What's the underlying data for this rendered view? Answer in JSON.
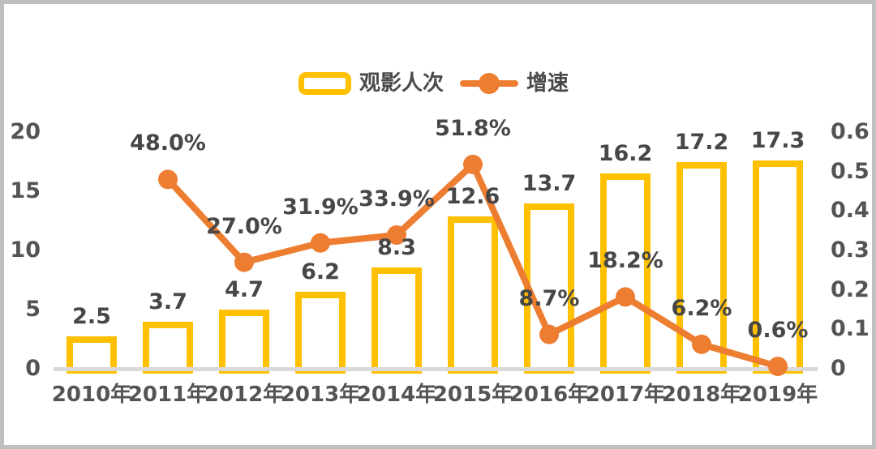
{
  "chart": {
    "legend": {
      "bar_label": "观影人次",
      "line_label": "增速"
    },
    "colors": {
      "bar": "#FFC000",
      "line": "#ED7D31",
      "data_label_text": "#474747",
      "axis_text": "#545454",
      "axis_line": "#D9D9D9",
      "frame_border": "#BFBFBF",
      "background": "#FFFFFF"
    }
  },
  "chart_data": {
    "type": "bar",
    "subtype": "bar-line-combo",
    "title": "",
    "legend_position": "top-center",
    "grid": false,
    "categories": [
      "2010年",
      "2011年",
      "2012年",
      "2013年",
      "2014年",
      "2015年",
      "2016年",
      "2017年",
      "2018年",
      "2019年"
    ],
    "series": [
      {
        "name": "观影人次",
        "type": "bar",
        "axis": "left",
        "values": [
          2.5,
          3.7,
          4.7,
          6.2,
          8.3,
          12.6,
          13.7,
          16.2,
          17.2,
          17.3
        ],
        "labels": [
          "2.5",
          "3.7",
          "4.7",
          "6.2",
          "8.3",
          "12.6",
          "13.7",
          "16.2",
          "17.2",
          "17.3"
        ]
      },
      {
        "name": "增速",
        "type": "line",
        "axis": "right",
        "values_percent": [
          null,
          48.0,
          27.0,
          31.9,
          33.9,
          51.8,
          8.7,
          18.2,
          6.2,
          0.6
        ],
        "labels": [
          null,
          "48.0%",
          "27.0%",
          "31.9%",
          "33.9%",
          "51.8%",
          "8.7%",
          "18.2%",
          "6.2%",
          "0.6%"
        ]
      }
    ],
    "left_axis": {
      "ticks": [
        "0",
        "5",
        "10",
        "15",
        "20"
      ],
      "range": [
        0,
        20
      ]
    },
    "right_axis": {
      "ticks": [
        "0",
        "0.1",
        "0.2",
        "0.3",
        "0.4",
        "0.5",
        "0.6"
      ],
      "range": [
        0,
        0.6
      ]
    }
  }
}
